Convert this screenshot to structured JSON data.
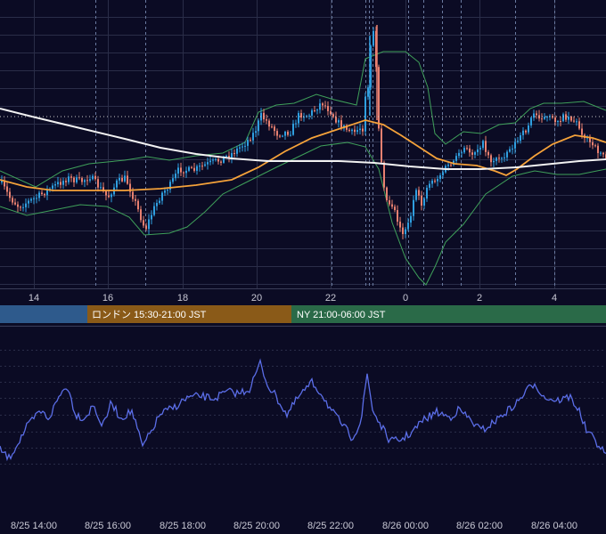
{
  "colors": {
    "background": "#0b0b24",
    "grid": "#2a2d48",
    "session_line": "#6a7aa0",
    "candle_up": "#2f9fe0",
    "candle_down": "#e88070",
    "ma_short": "#f5a23a",
    "ma_long": "#f2f2f2",
    "bollinger": "#3fa05a",
    "reference_line": "#c8c8c8",
    "oscillator": "#5b6ee8",
    "session_tokyo": "#2e5a8c",
    "session_london": "#8a5a18",
    "session_ny": "#2a6a48"
  },
  "sessions": [
    {
      "name": "tokyo",
      "label": "",
      "from": 0,
      "to": 98
    },
    {
      "name": "london",
      "label": "ロンドン 15:30-21:00 JST",
      "from": 98,
      "to": 327
    },
    {
      "name": "ny",
      "label": "NY 21:00-06:00 JST",
      "from": 327,
      "to": 680
    }
  ],
  "chart_data": [
    {
      "type": "candlestick",
      "x_tick_labels": [
        "14",
        "16",
        "18",
        "20",
        "22",
        "0",
        "2",
        "4"
      ],
      "overlays": [
        "moving-average-short",
        "moving-average-long",
        "bollinger-bands",
        "dotted-reference-line"
      ],
      "grid": true
    },
    {
      "type": "line",
      "x_tick_labels": [
        "8/25 14:00",
        "8/25 16:00",
        "8/25 18:00",
        "8/25 20:00",
        "8/25 22:00",
        "8/26 00:00",
        "8/26 02:00",
        "8/26 04:00"
      ],
      "grid": true
    }
  ]
}
